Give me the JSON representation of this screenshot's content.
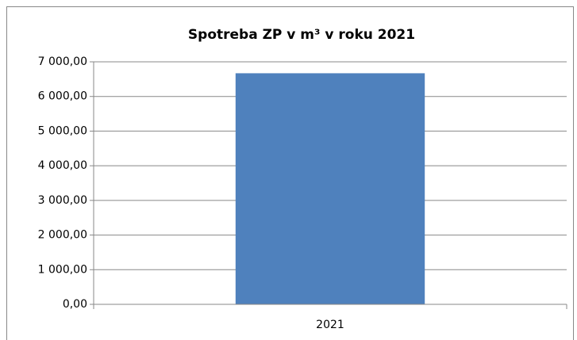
{
  "chart_data": {
    "type": "bar",
    "title": "Spotreba ZP v m³ v roku 2021",
    "categories": [
      "2021"
    ],
    "values": [
      6670
    ],
    "color": "#4f81bd",
    "ylim": [
      0,
      7000
    ],
    "yticks": [
      {
        "value": 0,
        "label": "0,00"
      },
      {
        "value": 1000,
        "label": "1 000,00"
      },
      {
        "value": 2000,
        "label": "2 000,00"
      },
      {
        "value": 3000,
        "label": "3 000,00"
      },
      {
        "value": 4000,
        "label": "4 000,00"
      },
      {
        "value": 5000,
        "label": "5 000,00"
      },
      {
        "value": 6000,
        "label": "6 000,00"
      },
      {
        "value": 7000,
        "label": "7 000,00"
      }
    ],
    "grid": true
  }
}
